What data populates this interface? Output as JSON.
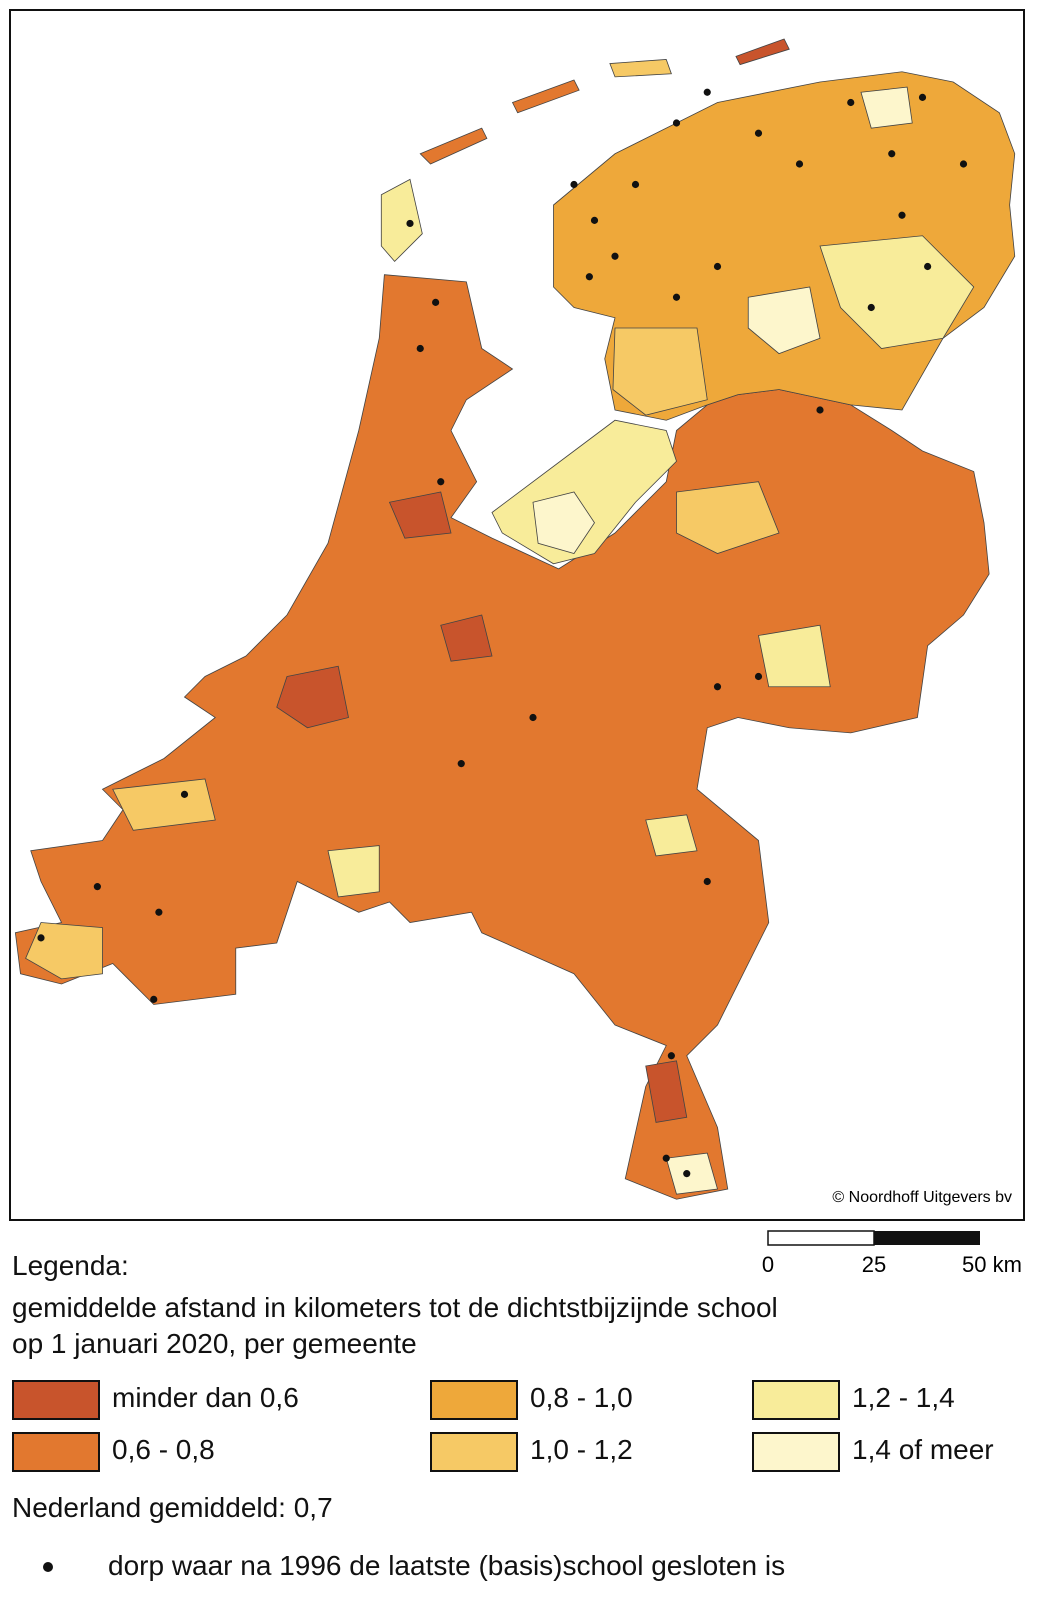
{
  "map": {
    "copyright": "© Noordhoff Uitgevers bv",
    "scale_labels": [
      "0",
      "25",
      "50 km"
    ]
  },
  "legend": {
    "title": "Legenda:",
    "subtitle_lines": [
      "gemiddelde afstand in kilometers tot de dichtstbijzijnde school",
      "op 1 januari 2020, per gemeente"
    ],
    "classes": [
      {
        "label": "minder dan 0,6",
        "color": "#c8542c"
      },
      {
        "label": "0,6 - 0,8",
        "color": "#e2782f"
      },
      {
        "label": "0,8 - 1,0",
        "color": "#eea83a"
      },
      {
        "label": "1,0 - 1,2",
        "color": "#f6c965"
      },
      {
        "label": "1,2 - 1,4",
        "color": "#f8ec9a"
      },
      {
        "label": "1,4 of meer",
        "color": "#fdf6cc"
      }
    ],
    "average": "Nederland gemiddeld: 0,7",
    "dot_label": "dorp waar na 1996 de laatste (basis)school gesloten is"
  }
}
